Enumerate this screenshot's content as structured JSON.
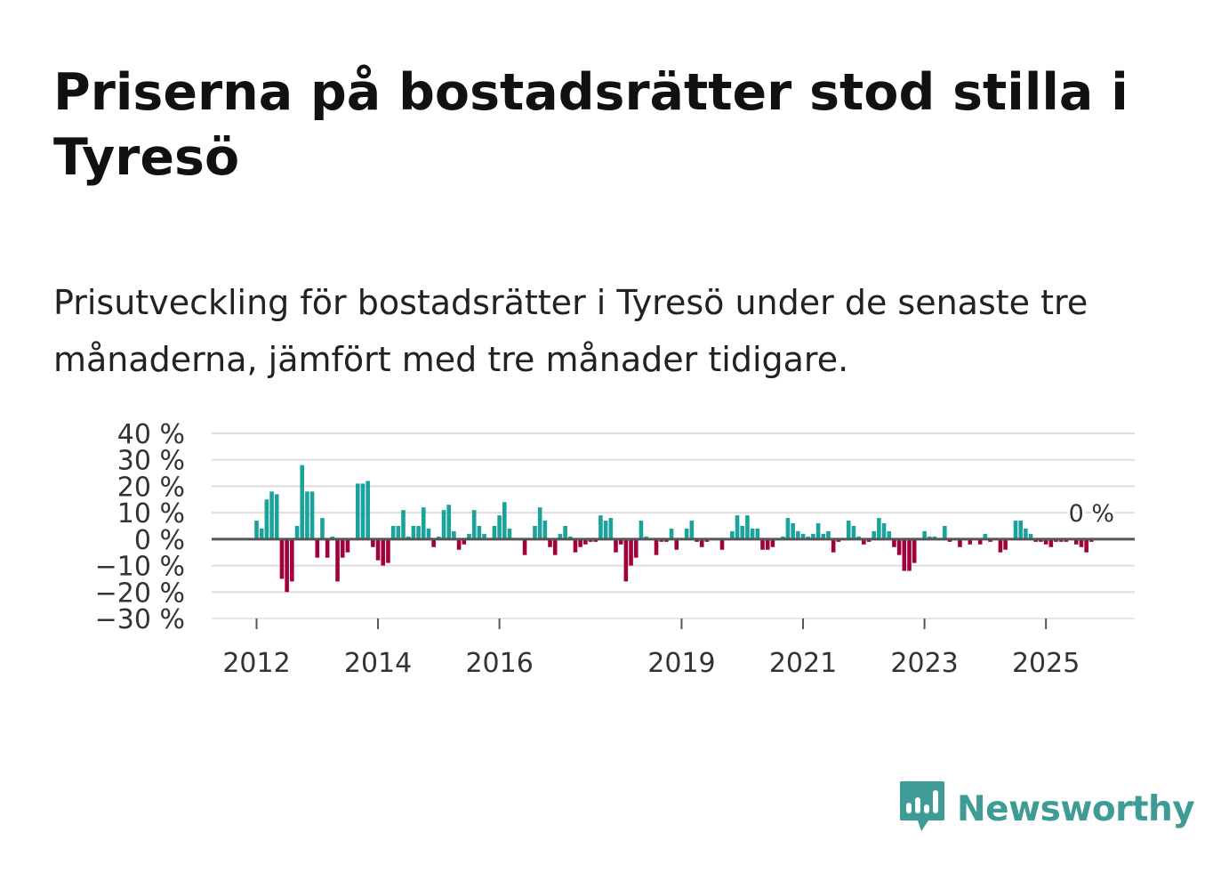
{
  "title": "Priserna på bostadsrätter stod stilla i Tyresö",
  "subtitle": "Prisutveckling för bostadsrätter i Tyresö under de senaste tre månaderna, jämfört med tre månader tidigare.",
  "brand": {
    "name": "Newsworthy",
    "icon": "newsworthy-logo-icon"
  },
  "colors": {
    "positive": "#1aa39a",
    "negative": "#a0003c",
    "grid": "#dddddd",
    "zero_line": "#555555",
    "brand": "#3e9b96"
  },
  "chart_data": {
    "type": "bar",
    "title": "Priserna på bostadsrätter stod stilla i Tyresö",
    "subtitle": "Prisutveckling för bostadsrätter i Tyresö under de senaste tre månaderna, jämfört med tre månader tidigare.",
    "xlabel": "",
    "ylabel": "",
    "unit": "%",
    "ylim": [
      -30,
      40
    ],
    "y_ticks": [
      40,
      30,
      20,
      10,
      0,
      -10,
      -20,
      -30
    ],
    "y_tick_labels": [
      "40 %",
      "30 %",
      "20 %",
      "10 %",
      "0 %",
      "−10 %",
      "−20 %",
      "−30 %"
    ],
    "x_tick_labels": [
      "2012",
      "2014",
      "2016",
      "2019",
      "2021",
      "2023",
      "2025"
    ],
    "x_tick_month_index": [
      0,
      24,
      48,
      84,
      108,
      132,
      156
    ],
    "start": "2012-01",
    "end": "2025-09",
    "annotation": {
      "label": "0 %",
      "value": 0
    },
    "values": [
      7,
      4,
      15,
      18,
      17,
      -15,
      -20,
      -16,
      5,
      28,
      18,
      18,
      -7,
      8,
      -7,
      1,
      -16,
      -7,
      -5,
      0,
      21,
      21,
      22,
      -3,
      -8,
      -10,
      -9,
      5,
      5,
      11,
      1,
      5,
      5,
      12,
      4,
      -3,
      1,
      11,
      13,
      3,
      -4,
      -2,
      2,
      11,
      5,
      2,
      0,
      5,
      9,
      14,
      4,
      0,
      0,
      -6,
      0,
      5,
      12,
      7,
      -3,
      -6,
      2,
      5,
      1,
      -5,
      -3,
      -2,
      -1,
      -1,
      9,
      7,
      8,
      -5,
      -2,
      -16,
      -10,
      -7,
      7,
      1,
      0,
      -6,
      -1,
      -1,
      4,
      -4,
      0,
      4,
      7,
      -1,
      -3,
      -1,
      0,
      0,
      -4,
      0,
      3,
      9,
      5,
      9,
      4,
      4,
      -4,
      -4,
      -3,
      0,
      1,
      8,
      6,
      3,
      2,
      1,
      2,
      6,
      2,
      3,
      -5,
      -1,
      0,
      7,
      5,
      1,
      -2,
      -1,
      3,
      8,
      6,
      3,
      -3,
      -6,
      -12,
      -12,
      -9,
      0,
      3,
      1,
      1,
      0,
      5,
      -1,
      0,
      -3,
      0,
      -2,
      0,
      -2,
      2,
      -1,
      0,
      -5,
      -4,
      0,
      7,
      7,
      4,
      2,
      -1,
      -1,
      -2,
      -3,
      -1,
      -1,
      -1,
      0,
      -2,
      -3,
      -5,
      -1
    ]
  }
}
